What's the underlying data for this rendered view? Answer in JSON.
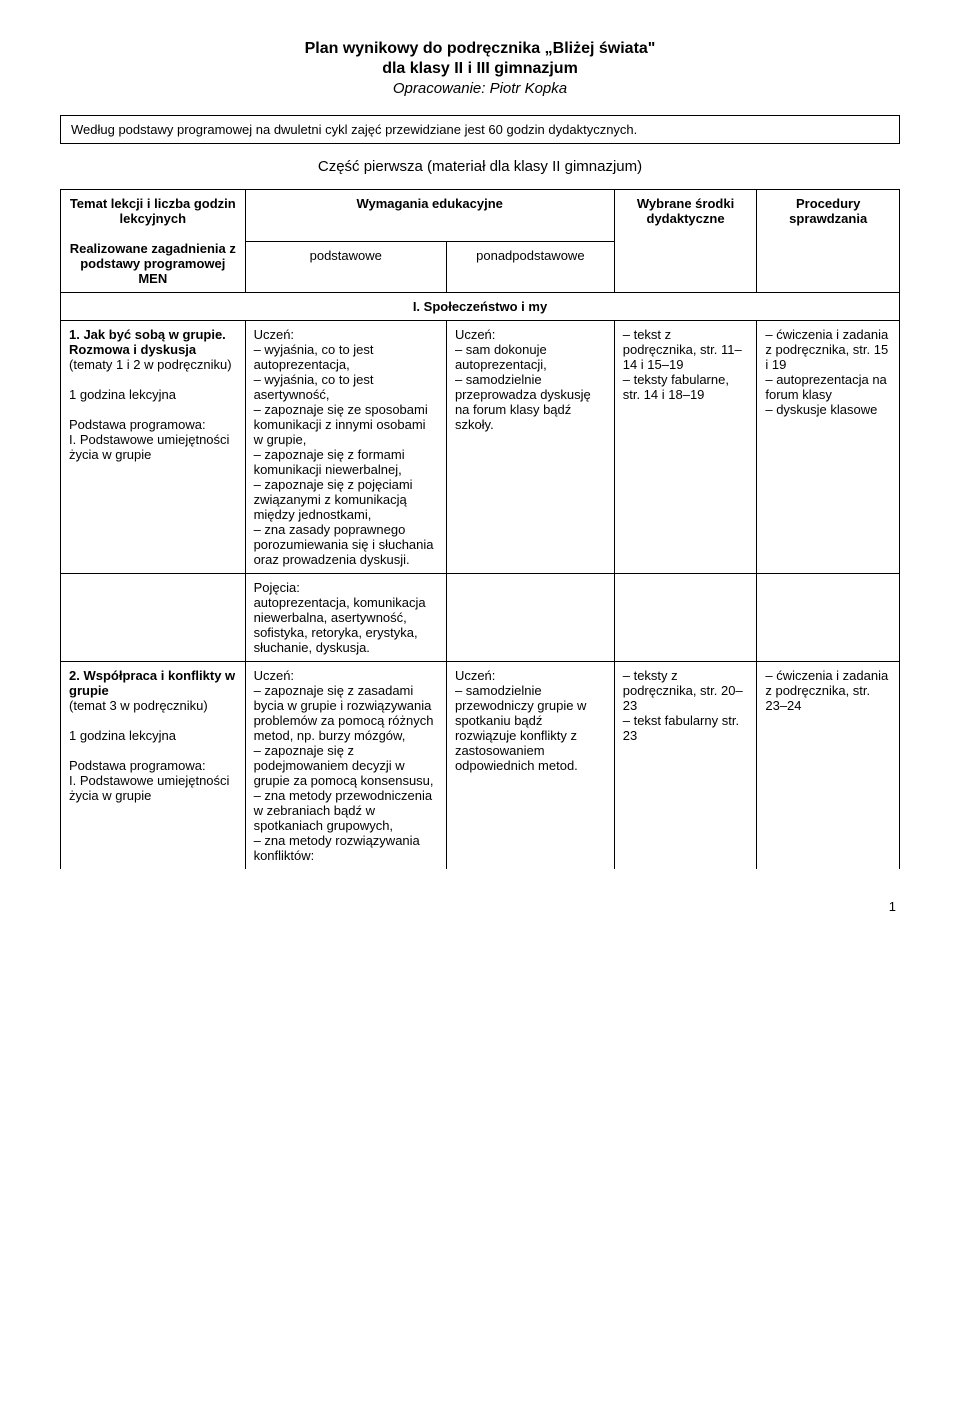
{
  "header": {
    "title": "Plan wynikowy do podręcznika „Bliżej świata\"",
    "subtitle": "dla klasy II i III gimnazjum",
    "author": "Opracowanie: Piotr Kopka"
  },
  "intro": "Według podstawy programowej na dwuletni cykl zajęć przewidziane jest 60 godzin dydaktycznych.",
  "part_title": "Część pierwsza (materiał dla klasy II gimnazjum)",
  "table_headers": {
    "topic": "Temat lekcji i liczba godzin lekcyjnych",
    "topic_sub": "Realizowane zagadnienia z podstawy programowej MEN",
    "requirements": "Wymagania edukacyjne",
    "req_basic": "podstawowe",
    "req_extended": "ponadpodstawowe",
    "resources": "Wybrane środki dydaktyczne",
    "procedures": "Procedury sprawdzania"
  },
  "section_title": "I. Społeczeństwo i my",
  "rows": [
    {
      "topic_title": "1. Jak być sobą w grupie. Rozmowa i dyskusja",
      "topic_rest": "(tematy 1 i 2 w podręczniku)\n\n1 godzina lekcyjna\n\nPodstawa programowa:\nI. Podstawowe umiejętności życia w grupie",
      "basic": "Uczeń:\n– wyjaśnia, co to jest autoprezentacja,\n– wyjaśnia, co to jest asertywność,\n– zapoznaje się ze sposobami komunikacji z innymi osobami w grupie,\n– zapoznaje się z formami komunikacji niewerbalnej,\n– zapoznaje się z pojęciami związanymi z komunikacją między jednostkami,\n– zna zasady poprawnego porozumiewania się i słuchania oraz prowadzenia dyskusji.",
      "extended": "Uczeń:\n– sam dokonuje autoprezentacji,\n– samodzielnie przeprowadza dyskusję na forum klasy bądź szkoły.",
      "resources": "– tekst z podręcznika, str. 11–14 i 15–19\n– teksty fabularne, str. 14 i 18–19",
      "procedures": "– ćwiczenia i zadania z podręcznika, str. 15 i 19\n– autoprezentacja na forum klasy\n– dyskusje klasowe"
    },
    {
      "basic_only": "Pojęcia:\nautoprezentacja, komunikacja niewerbalna, asertywność, sofistyka, retoryka, erystyka, słuchanie, dyskusja."
    },
    {
      "topic_title": "2. Współpraca i konflikty w grupie",
      "topic_rest": "(temat 3 w podręczniku)\n\n1 godzina lekcyjna\n\nPodstawa programowa:\nI. Podstawowe umiejętności życia w grupie",
      "basic": "Uczeń:\n– zapoznaje się z zasadami bycia w grupie i rozwiązywania problemów za pomocą różnych metod, np. burzy mózgów,\n– zapoznaje się z podejmowaniem decyzji w grupie za pomocą konsensusu,\n– zna metody przewodniczenia w zebraniach bądź w spotkaniach grupowych,\n– zna metody rozwiązywania konfliktów:",
      "extended": "Uczeń:\n– samodzielnie przewodniczy grupie w spotkaniu bądź rozwiązuje konflikty z zastosowaniem odpowiednich metod.",
      "resources": "– teksty z podręcznika, str. 20–23\n– tekst fabularny str. 23",
      "procedures": "– ćwiczenia i zadania z podręcznika, str. 23–24"
    }
  ],
  "page_number": "1"
}
